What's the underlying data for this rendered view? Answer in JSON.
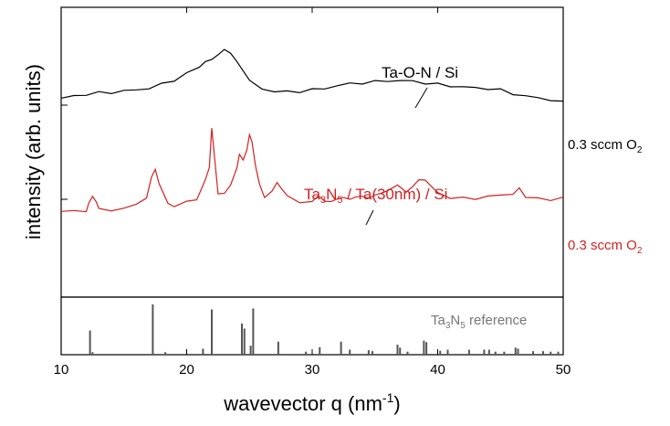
{
  "chart_data": {
    "type": "line",
    "xlabel": "wavevector q (nm",
    "xlabel_sup": "-1",
    "xlabel_end": ")",
    "ylabel": "intensity (arb. units)",
    "xlim": [
      10,
      50
    ],
    "x_ticks": [
      "10",
      "20",
      "30",
      "40",
      "50"
    ],
    "x_tick_values": [
      10,
      20,
      30,
      40,
      50
    ],
    "series": [
      {
        "name": "Ta-O-N / Si",
        "name_parts": [
          "Ta-O-N / Si"
        ],
        "condition": [
          "0.3 sccm O",
          "2"
        ],
        "color": "#000000",
        "x": [
          10,
          11,
          12,
          13,
          14,
          15,
          16,
          17,
          18,
          19,
          20,
          21,
          21.5,
          22,
          22.5,
          23,
          23.5,
          24,
          24.5,
          25,
          26,
          27,
          28,
          29,
          30,
          31,
          32,
          33,
          34,
          35,
          36,
          37,
          38,
          39,
          40,
          41,
          42,
          43,
          44,
          45,
          46,
          47,
          48,
          49,
          50
        ],
        "y": [
          0.51,
          0.53,
          0.54,
          0.55,
          0.56,
          0.58,
          0.6,
          0.63,
          0.67,
          0.72,
          0.78,
          0.84,
          0.88,
          0.92,
          0.97,
          1.0,
          0.97,
          0.9,
          0.78,
          0.68,
          0.61,
          0.59,
          0.59,
          0.6,
          0.61,
          0.62,
          0.64,
          0.65,
          0.66,
          0.67,
          0.69,
          0.7,
          0.7,
          0.69,
          0.67,
          0.65,
          0.63,
          0.61,
          0.6,
          0.58,
          0.55,
          0.53,
          0.52,
          0.51,
          0.48
        ]
      },
      {
        "name": "Ta3N5 / Ta(30nm) / Si",
        "name_parts": [
          "Ta",
          "3",
          "N",
          "5",
          " / Ta(30nm) / Si"
        ],
        "condition": [
          "0.3 sccm O",
          "2"
        ],
        "color": "#d42020",
        "x": [
          10,
          11,
          12,
          12.2,
          12.5,
          12.8,
          13,
          14,
          15,
          16,
          16.8,
          17.2,
          17.5,
          17.8,
          18.5,
          19,
          20,
          20.8,
          21.2,
          21.5,
          21.8,
          22,
          22.2,
          22.5,
          23,
          23.5,
          24,
          24.2,
          24.5,
          24.8,
          25,
          25.2,
          25.5,
          25.8,
          26.2,
          26.8,
          27.2,
          27.5,
          28,
          29,
          30,
          30.5,
          31,
          31.5,
          32,
          32.5,
          33,
          33.5,
          34,
          34.5,
          35,
          35.5,
          36,
          36.8,
          37.5,
          38,
          38.5,
          39,
          39.5,
          40,
          41,
          42,
          43,
          44,
          45,
          46,
          46.5,
          47,
          48,
          49,
          50
        ],
        "y": [
          -0.7,
          -0.68,
          -0.67,
          -0.6,
          -0.51,
          -0.6,
          -0.66,
          -0.66,
          -0.66,
          -0.62,
          -0.55,
          -0.32,
          -0.25,
          -0.42,
          -0.62,
          -0.64,
          -0.6,
          -0.56,
          -0.45,
          -0.36,
          -0.2,
          0.21,
          -0.1,
          -0.48,
          -0.5,
          -0.4,
          -0.2,
          -0.06,
          -0.14,
          -0.05,
          0.12,
          0.05,
          -0.2,
          -0.42,
          -0.52,
          -0.48,
          -0.38,
          -0.44,
          -0.55,
          -0.6,
          -0.61,
          -0.52,
          -0.58,
          -0.6,
          -0.55,
          -0.52,
          -0.56,
          -0.53,
          -0.5,
          -0.54,
          -0.52,
          -0.48,
          -0.46,
          -0.42,
          -0.48,
          -0.45,
          -0.38,
          -0.36,
          -0.44,
          -0.52,
          -0.55,
          -0.54,
          -0.56,
          -0.5,
          -0.52,
          -0.49,
          -0.45,
          -0.55,
          -0.56,
          -0.58,
          -0.57
        ]
      }
    ],
    "reference": {
      "label_parts": [
        "Ta",
        "3",
        "N",
        "5",
        " reference"
      ],
      "color": "#555555",
      "sticks": [
        {
          "q": 12.3,
          "h": 0.48
        },
        {
          "q": 12.5,
          "h": 0.05
        },
        {
          "q": 17.3,
          "h": 1.0
        },
        {
          "q": 18.3,
          "h": 0.05
        },
        {
          "q": 21.3,
          "h": 0.12
        },
        {
          "q": 22.0,
          "h": 0.9
        },
        {
          "q": 24.4,
          "h": 0.62
        },
        {
          "q": 24.6,
          "h": 0.52
        },
        {
          "q": 25.1,
          "h": 0.18
        },
        {
          "q": 25.3,
          "h": 0.92
        },
        {
          "q": 27.3,
          "h": 0.26
        },
        {
          "q": 29.5,
          "h": 0.06
        },
        {
          "q": 30.6,
          "h": 0.15
        },
        {
          "q": 32.3,
          "h": 0.26
        },
        {
          "q": 33.0,
          "h": 0.1
        },
        {
          "q": 34.5,
          "h": 0.09
        },
        {
          "q": 34.8,
          "h": 0.07
        },
        {
          "q": 36.8,
          "h": 0.2
        },
        {
          "q": 37.0,
          "h": 0.14
        },
        {
          "q": 37.6,
          "h": 0.06
        },
        {
          "q": 38.9,
          "h": 0.28
        },
        {
          "q": 39.1,
          "h": 0.25
        },
        {
          "q": 40.2,
          "h": 0.08
        },
        {
          "q": 40.8,
          "h": 0.1
        },
        {
          "q": 42.5,
          "h": 0.1
        },
        {
          "q": 43.7,
          "h": 0.1
        },
        {
          "q": 44.1,
          "h": 0.1
        },
        {
          "q": 44.6,
          "h": 0.06
        },
        {
          "q": 45.3,
          "h": 0.06
        },
        {
          "q": 46.2,
          "h": 0.14
        },
        {
          "q": 46.4,
          "h": 0.12
        },
        {
          "q": 47.6,
          "h": 0.07
        },
        {
          "q": 48.4,
          "h": 0.07
        },
        {
          "q": 49.0,
          "h": 0.06
        },
        {
          "q": 49.6,
          "h": 0.06
        }
      ]
    }
  }
}
